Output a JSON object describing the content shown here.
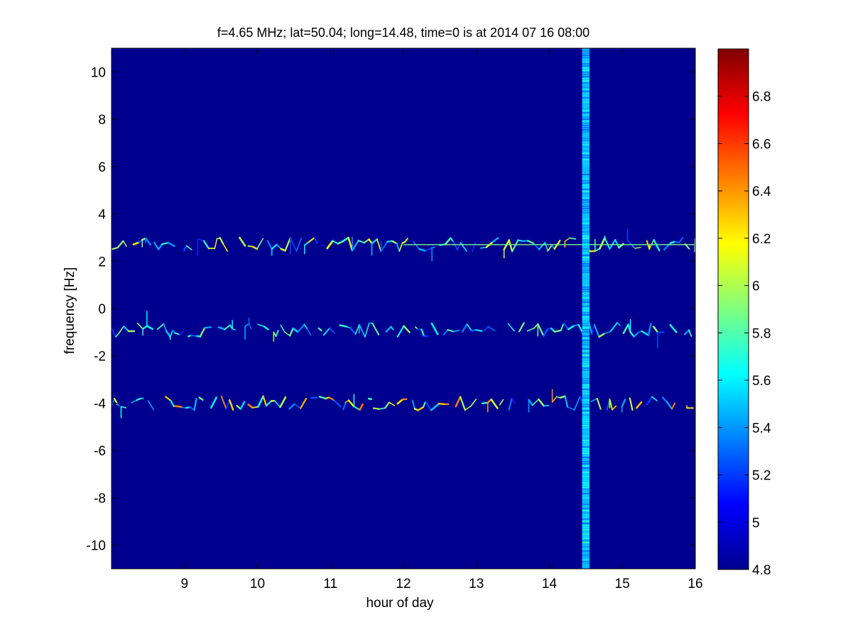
{
  "chart_data": {
    "type": "heatmap",
    "title": "f=4.65 MHz;  lat=50.04; long=14.48, time=0 is at 2014 07 16 08:00",
    "xlabel": "hour of day",
    "ylabel": "frequency [Hz]",
    "xlim": [
      8.0,
      16.0
    ],
    "ylim": [
      -11,
      11
    ],
    "xticks": [
      "9",
      "10",
      "11",
      "12",
      "13",
      "14",
      "15",
      "16"
    ],
    "yticks": [
      "-10",
      "-8",
      "-6",
      "-4",
      "-2",
      "0",
      "2",
      "4",
      "6",
      "8",
      "10"
    ],
    "colorbar": {
      "range": [
        4.8,
        7.0
      ],
      "ticks": [
        "4.8",
        "5",
        "5.2",
        "5.4",
        "5.6",
        "5.8",
        "6",
        "6.2",
        "6.4",
        "6.6",
        "6.8"
      ],
      "colormap": "jet"
    },
    "background_value": 4.8,
    "colors": {
      "background": "#00008f",
      "frame": "#000000"
    },
    "features": [
      {
        "kind": "band",
        "center_hz": 2.7,
        "start_hour": 8.0,
        "end_hour": 16.0,
        "peak_value": 6.3
      },
      {
        "kind": "band",
        "center_hz": -0.9,
        "start_hour": 8.0,
        "end_hour": 16.0,
        "peak_value": 6.0
      },
      {
        "kind": "band",
        "center_hz": -4.0,
        "start_hour": 8.0,
        "end_hour": 16.0,
        "peak_value": 6.5
      },
      {
        "kind": "tone",
        "center_hz": 2.7,
        "start_hour": 12.0,
        "end_hour": 16.0,
        "value": 5.9
      },
      {
        "kind": "broadband_column",
        "hour_start": 14.45,
        "hour_end": 14.55,
        "value": 5.5
      }
    ]
  }
}
